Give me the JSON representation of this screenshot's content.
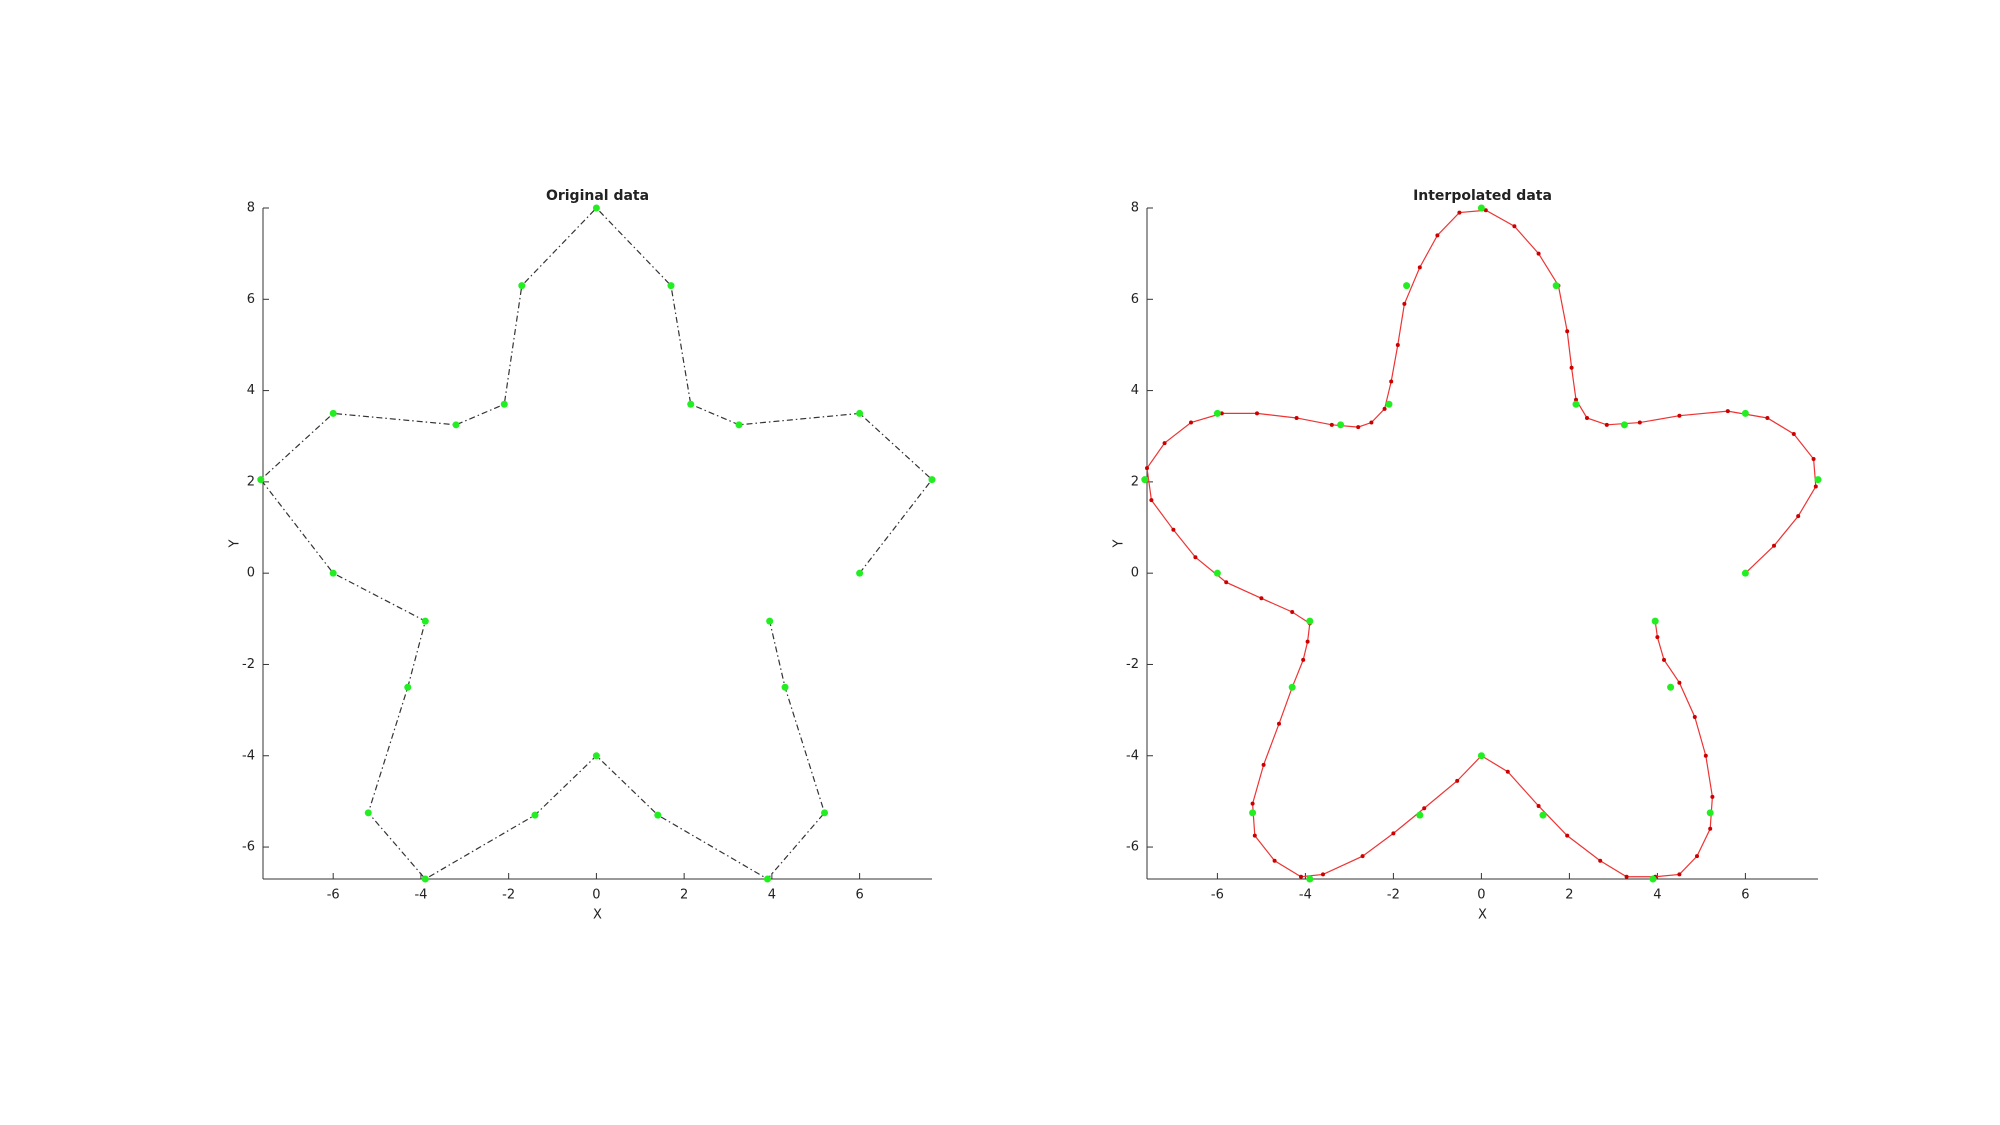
{
  "chart_data": [
    {
      "type": "line",
      "title": "Original data",
      "xlabel": "X",
      "ylabel": "Y",
      "xlim": [
        -7.6,
        7.65
      ],
      "ylim": [
        -6.7,
        8
      ],
      "xticks": [
        -6,
        -4,
        -2,
        0,
        2,
        4,
        6
      ],
      "yticks": [
        -6,
        -4,
        -2,
        0,
        2,
        4,
        6,
        8
      ],
      "series": [
        {
          "color": "#333333",
          "marker_color": "#22ee22",
          "line_style": "dashdot",
          "marker_size": 3.5,
          "x": [
            6,
            7.65,
            6,
            3.25,
            2.15,
            1.7,
            0,
            -1.7,
            -2.1,
            -3.2,
            -6,
            -7.65,
            -6,
            -3.9,
            -4.3,
            -5.2,
            -3.9,
            -1.4,
            0,
            1.4,
            3.9,
            5.2,
            4.3,
            3.95
          ],
          "values": [
            0,
            2.05,
            3.5,
            3.25,
            3.7,
            6.3,
            8,
            6.3,
            3.7,
            3.25,
            3.5,
            2.05,
            0,
            -1.05,
            -2.5,
            -5.25,
            -6.7,
            -5.3,
            -4,
            -5.3,
            -6.7,
            -5.25,
            -2.5,
            -1.05
          ]
        }
      ]
    },
    {
      "type": "line",
      "title": "Interpolated data",
      "xlabel": "X",
      "ylabel": "Y",
      "xlim": [
        -7.6,
        7.65
      ],
      "ylim": [
        -6.7,
        8
      ],
      "xticks": [
        -6,
        -4,
        -2,
        0,
        2,
        4,
        6
      ],
      "yticks": [
        -6,
        -4,
        -2,
        0,
        2,
        4,
        6,
        8
      ],
      "series": [
        {
          "color": "#ee3333",
          "marker_color": "#cc0000",
          "line_style": "solid",
          "marker_size": 2,
          "x": [
            6,
            6.65,
            7.2,
            7.6,
            7.55,
            7.1,
            6.5,
            5.6,
            4.5,
            3.6,
            2.85,
            2.4,
            2.15,
            2.05,
            1.95,
            1.75,
            1.3,
            0.75,
            0.1,
            -0.5,
            -1.0,
            -1.4,
            -1.75,
            -1.9,
            -2.05,
            -2.2,
            -2.5,
            -2.8,
            -3.4,
            -4.2,
            -5.1,
            -5.9,
            -6.6,
            -7.2,
            -7.6,
            -7.5,
            -7.0,
            -6.5,
            -5.8,
            -5.0,
            -4.3,
            -3.9,
            -3.95,
            -4.05,
            -4.3,
            -4.6,
            -4.95,
            -5.2,
            -5.15,
            -4.7,
            -4.1,
            -3.6,
            -2.7,
            -2.0,
            -1.3,
            -0.55,
            0,
            0.6,
            1.3,
            1.95,
            2.7,
            3.3,
            3.95,
            4.5,
            4.9,
            5.2,
            5.25,
            5.1,
            4.85,
            4.5,
            4.15,
            4.0,
            3.95
          ],
          "values": [
            0,
            0.6,
            1.25,
            1.9,
            2.5,
            3.05,
            3.4,
            3.55,
            3.45,
            3.3,
            3.25,
            3.4,
            3.8,
            4.5,
            5.3,
            6.3,
            7.0,
            7.6,
            7.95,
            7.9,
            7.4,
            6.7,
            5.9,
            5.0,
            4.2,
            3.6,
            3.3,
            3.2,
            3.25,
            3.4,
            3.5,
            3.5,
            3.3,
            2.85,
            2.3,
            1.6,
            0.95,
            0.35,
            -0.2,
            -0.55,
            -0.85,
            -1.1,
            -1.5,
            -1.9,
            -2.5,
            -3.3,
            -4.2,
            -5.05,
            -5.75,
            -6.3,
            -6.65,
            -6.6,
            -6.2,
            -5.7,
            -5.15,
            -4.55,
            -4.0,
            -4.35,
            -5.1,
            -5.75,
            -6.3,
            -6.65,
            -6.65,
            -6.6,
            -6.2,
            -5.6,
            -4.9,
            -4.0,
            -3.15,
            -2.4,
            -1.9,
            -1.4,
            -1.05
          ]
        },
        {
          "color": "none",
          "marker_color": "#22ee22",
          "line_style": "none",
          "marker_size": 3.5,
          "x": [
            6,
            7.65,
            6,
            3.25,
            2.15,
            1.7,
            0,
            -1.7,
            -2.1,
            -3.2,
            -6,
            -7.65,
            -6,
            -3.9,
            -4.3,
            -5.2,
            -3.9,
            -1.4,
            0,
            1.4,
            3.9,
            5.2,
            4.3,
            3.95
          ],
          "values": [
            0,
            2.05,
            3.5,
            3.25,
            3.7,
            6.3,
            8,
            6.3,
            3.7,
            3.25,
            3.5,
            2.05,
            0,
            -1.05,
            -2.5,
            -5.25,
            -6.7,
            -5.3,
            -4,
            -5.3,
            -6.7,
            -5.25,
            -2.5,
            -1.05
          ]
        }
      ]
    }
  ]
}
